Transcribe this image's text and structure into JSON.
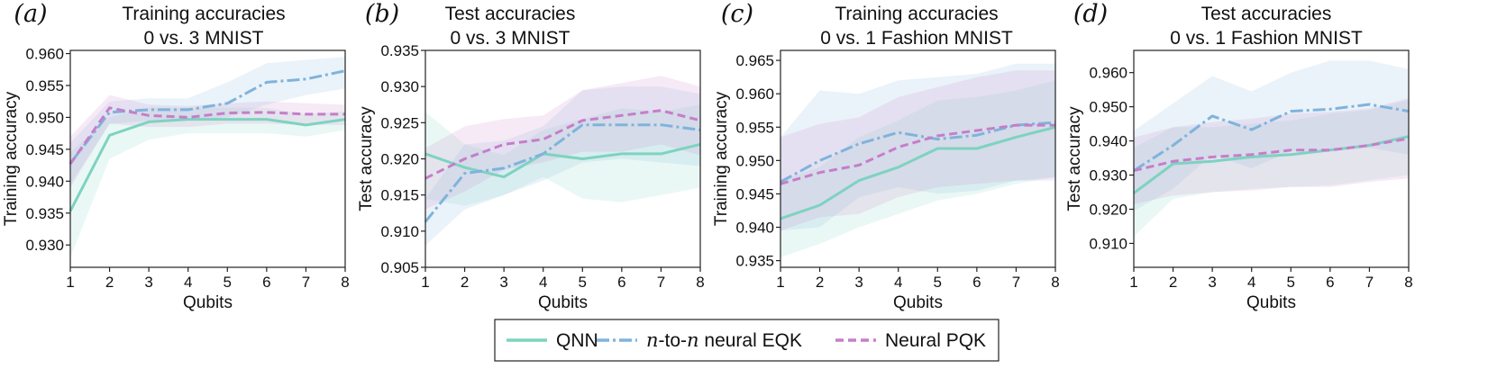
{
  "legend": [
    {
      "key": "qnn",
      "prefix": "",
      "label": "QNN"
    },
    {
      "key": "eqk",
      "prefix": "n",
      "mid": "-to-",
      "prefix2": "n",
      "label": " neural EQK"
    },
    {
      "key": "pqk",
      "prefix": "",
      "label": "Neural PQK"
    }
  ],
  "colors": {
    "qnn": "#7dd3c0",
    "eqk": "#7fb3dc",
    "pqk": "#c57ec9"
  },
  "chart_data": [
    {
      "type": "line",
      "panel": "(a)",
      "title": [
        "Training accuracies",
        "0 vs. 3 MNIST"
      ],
      "xlabel": "Qubits",
      "ylabel": "Training accuracy",
      "x": [
        1,
        2,
        3,
        4,
        5,
        6,
        7,
        8
      ],
      "xlim": [
        1,
        8
      ],
      "ylim": [
        0.9265,
        0.9605
      ],
      "yticks": [
        0.93,
        0.935,
        0.94,
        0.945,
        0.95,
        0.955,
        0.96
      ],
      "series": [
        {
          "name": "QNN",
          "key": "qnn",
          "values": [
            0.9353,
            0.9472,
            0.9493,
            0.9497,
            0.9497,
            0.9497,
            0.9488,
            0.9497
          ],
          "lower": [
            0.928,
            0.9435,
            0.9465,
            0.9475,
            0.9475,
            0.9475,
            0.947,
            0.948
          ],
          "upper": [
            0.9445,
            0.95,
            0.9515,
            0.9515,
            0.9515,
            0.9515,
            0.9505,
            0.951
          ]
        },
        {
          "name": "n-to-n neural EQK",
          "key": "eqk",
          "values": [
            0.9428,
            0.9508,
            0.9512,
            0.9512,
            0.9522,
            0.9555,
            0.956,
            0.9573
          ],
          "lower": [
            0.9395,
            0.949,
            0.9495,
            0.9495,
            0.95,
            0.952,
            0.9535,
            0.9545
          ],
          "upper": [
            0.946,
            0.9525,
            0.953,
            0.953,
            0.9555,
            0.9585,
            0.959,
            0.9595
          ]
        },
        {
          "name": "Neural PQK",
          "key": "pqk",
          "values": [
            0.9427,
            0.9515,
            0.9503,
            0.95,
            0.9507,
            0.9508,
            0.9505,
            0.9505
          ],
          "lower": [
            0.939,
            0.949,
            0.9485,
            0.9485,
            0.949,
            0.949,
            0.9488,
            0.9488
          ],
          "upper": [
            0.947,
            0.9535,
            0.952,
            0.9518,
            0.9522,
            0.9525,
            0.9522,
            0.952
          ]
        }
      ]
    },
    {
      "type": "line",
      "panel": "(b)",
      "title": [
        "Test accuracies",
        "0 vs. 3 MNIST"
      ],
      "xlabel": "Qubits",
      "ylabel": "Test accuracy",
      "x": [
        1,
        2,
        3,
        4,
        5,
        6,
        7,
        8
      ],
      "xlim": [
        1,
        8
      ],
      "ylim": [
        0.905,
        0.935
      ],
      "yticks": [
        0.905,
        0.91,
        0.915,
        0.92,
        0.925,
        0.93,
        0.935
      ],
      "series": [
        {
          "name": "QNN",
          "key": "qnn",
          "values": [
            0.9207,
            0.9188,
            0.9175,
            0.9207,
            0.92,
            0.9207,
            0.9207,
            0.922
          ],
          "lower": [
            0.9145,
            0.9135,
            0.915,
            0.9175,
            0.9145,
            0.914,
            0.915,
            0.916
          ],
          "upper": [
            0.9265,
            0.922,
            0.9205,
            0.924,
            0.9255,
            0.927,
            0.9265,
            0.9275
          ]
        },
        {
          "name": "n-to-n neural EQK",
          "key": "eqk",
          "values": [
            0.9113,
            0.918,
            0.9187,
            0.9207,
            0.9247,
            0.9247,
            0.9247,
            0.924
          ],
          "lower": [
            0.908,
            0.913,
            0.915,
            0.917,
            0.9195,
            0.92,
            0.9195,
            0.919
          ],
          "upper": [
            0.9145,
            0.922,
            0.9225,
            0.9245,
            0.9295,
            0.93,
            0.93,
            0.929
          ]
        },
        {
          "name": "Neural PQK",
          "key": "pqk",
          "values": [
            0.9173,
            0.92,
            0.922,
            0.9227,
            0.9253,
            0.926,
            0.9267,
            0.9253
          ],
          "lower": [
            0.913,
            0.9155,
            0.9185,
            0.9195,
            0.921,
            0.921,
            0.922,
            0.9205
          ],
          "upper": [
            0.9215,
            0.9245,
            0.9255,
            0.926,
            0.9295,
            0.9305,
            0.9315,
            0.93
          ]
        }
      ]
    },
    {
      "type": "line",
      "panel": "(c)",
      "title": [
        "Training accuracies",
        "0 vs. 1 Fashion MNIST"
      ],
      "xlabel": "Qubits",
      "ylabel": "Training accuracy",
      "x": [
        1,
        2,
        3,
        4,
        5,
        6,
        7,
        8
      ],
      "xlim": [
        1,
        8
      ],
      "ylim": [
        0.934,
        0.9665
      ],
      "yticks": [
        0.935,
        0.94,
        0.945,
        0.95,
        0.955,
        0.96,
        0.965
      ],
      "series": [
        {
          "name": "QNN",
          "key": "qnn",
          "values": [
            0.9413,
            0.9433,
            0.947,
            0.949,
            0.9518,
            0.9518,
            0.9535,
            0.955
          ],
          "lower": [
            0.9355,
            0.9375,
            0.94,
            0.942,
            0.944,
            0.945,
            0.9465,
            0.9475
          ],
          "upper": [
            0.947,
            0.949,
            0.9535,
            0.956,
            0.959,
            0.9595,
            0.9605,
            0.962
          ]
        },
        {
          "name": "n-to-n neural EQK",
          "key": "eqk",
          "values": [
            0.9468,
            0.95,
            0.9525,
            0.9542,
            0.9532,
            0.9538,
            0.9553,
            0.9557
          ],
          "lower": [
            0.9395,
            0.94,
            0.9445,
            0.946,
            0.945,
            0.9455,
            0.947,
            0.9475
          ],
          "upper": [
            0.9535,
            0.9605,
            0.96,
            0.962,
            0.9625,
            0.963,
            0.9645,
            0.9645
          ]
        },
        {
          "name": "Neural PQK",
          "key": "pqk",
          "values": [
            0.9465,
            0.9482,
            0.9493,
            0.952,
            0.9537,
            0.9545,
            0.9553,
            0.9553
          ],
          "lower": [
            0.9395,
            0.9415,
            0.942,
            0.9445,
            0.946,
            0.9465,
            0.947,
            0.947
          ],
          "upper": [
            0.9535,
            0.9555,
            0.9565,
            0.9595,
            0.961,
            0.9625,
            0.9635,
            0.9635
          ]
        }
      ]
    },
    {
      "type": "line",
      "panel": "(d)",
      "title": [
        "Test accuracies",
        "0 vs. 1 Fashion MNIST"
      ],
      "xlabel": "Qubits",
      "ylabel": "Test accuracy",
      "x": [
        1,
        2,
        3,
        4,
        5,
        6,
        7,
        8
      ],
      "xlim": [
        1,
        8
      ],
      "ylim": [
        0.903,
        0.9665
      ],
      "yticks": [
        0.91,
        0.92,
        0.93,
        0.94,
        0.95,
        0.96
      ],
      "series": [
        {
          "name": "QNN",
          "key": "qnn",
          "values": [
            0.9247,
            0.9333,
            0.934,
            0.9353,
            0.936,
            0.9373,
            0.9387,
            0.9413
          ],
          "lower": [
            0.912,
            0.923,
            0.925,
            0.926,
            0.9265,
            0.927,
            0.9285,
            0.93
          ],
          "upper": [
            0.938,
            0.944,
            0.944,
            0.945,
            0.946,
            0.948,
            0.949,
            0.952
          ]
        },
        {
          "name": "n-to-n neural EQK",
          "key": "eqk",
          "values": [
            0.9313,
            0.9387,
            0.9473,
            0.9433,
            0.9487,
            0.9493,
            0.9507,
            0.9487
          ],
          "lower": [
            0.9195,
            0.926,
            0.936,
            0.932,
            0.937,
            0.937,
            0.938,
            0.936
          ],
          "upper": [
            0.943,
            0.951,
            0.959,
            0.9545,
            0.96,
            0.9635,
            0.9635,
            0.961
          ]
        },
        {
          "name": "Neural PQK",
          "key": "pqk",
          "values": [
            0.9313,
            0.934,
            0.9353,
            0.936,
            0.9373,
            0.9373,
            0.9387,
            0.9407
          ],
          "lower": [
            0.9215,
            0.924,
            0.925,
            0.9255,
            0.9265,
            0.9265,
            0.928,
            0.929
          ],
          "upper": [
            0.941,
            0.944,
            0.9455,
            0.9465,
            0.948,
            0.9485,
            0.9495,
            0.9525
          ]
        }
      ]
    }
  ]
}
